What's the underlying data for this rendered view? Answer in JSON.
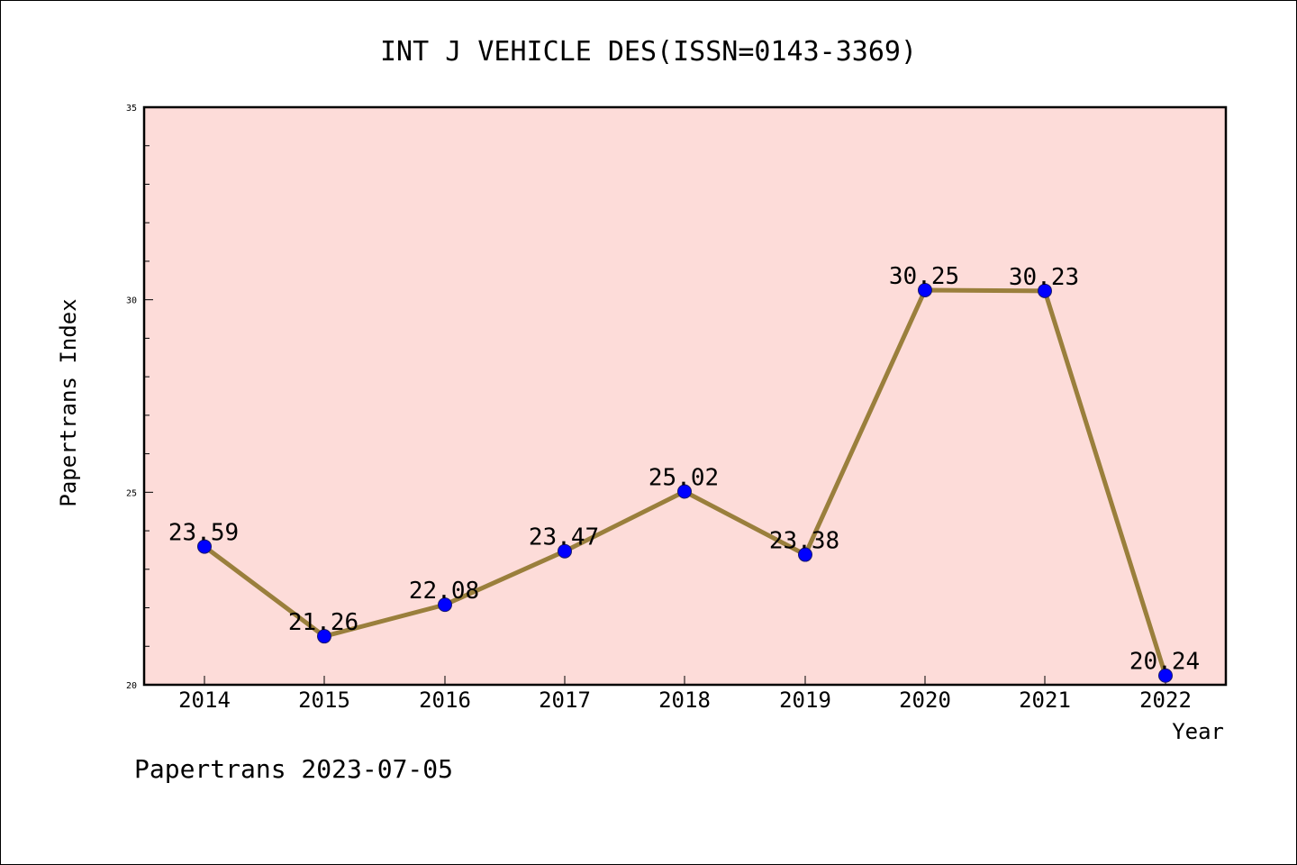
{
  "chart_data": {
    "type": "line",
    "title": "INT J VEHICLE DES(ISSN=0143-3369)",
    "xlabel": "Year",
    "ylabel": "Papertrans Index",
    "categories": [
      "2014",
      "2015",
      "2016",
      "2017",
      "2018",
      "2019",
      "2020",
      "2021",
      "2022"
    ],
    "series": [
      {
        "values": [
          23.59,
          21.26,
          22.08,
          23.47,
          25.02,
          23.38,
          30.25,
          30.23,
          20.24
        ],
        "labels": [
          "23.59",
          "21.26",
          "22.08",
          "23.47",
          "25.02",
          "23.38",
          "30.25",
          "30.23",
          "20.24"
        ],
        "line_color": "#9a7f3c",
        "marker_color": "#0000ff"
      }
    ],
    "ylim": [
      20,
      35
    ],
    "yticks": [
      "20",
      "25",
      "30",
      "35"
    ],
    "plot_background": "#fddcd9",
    "grid": false,
    "legend": "none"
  },
  "footer": "Papertrans 2023-07-05"
}
